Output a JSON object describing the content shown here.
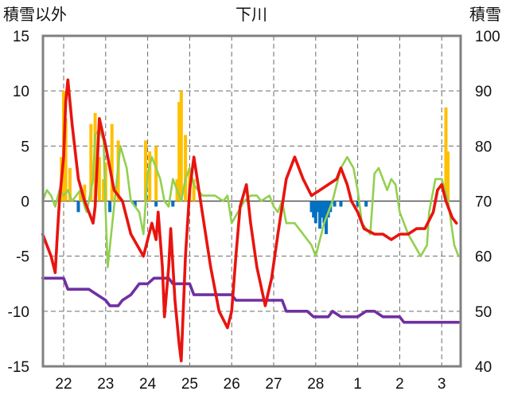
{
  "chart_data": {
    "type": "line",
    "title": "下川",
    "left_axis_label": "積雪以外",
    "right_axis_label": "積雪",
    "left_ylim": [
      -15,
      15
    ],
    "left_ticks": [
      "15",
      "10",
      "5",
      "0",
      "-5",
      "-10",
      "-15"
    ],
    "right_ylim": [
      40,
      100
    ],
    "right_ticks": [
      "100",
      "90",
      "80",
      "70",
      "60",
      "50",
      "40"
    ],
    "x_tick_labels": [
      "22",
      "23",
      "24",
      "25",
      "26",
      "27",
      "28",
      "1",
      "2",
      "3"
    ],
    "grid": true,
    "colors": {
      "red_series": "#e8140f",
      "green_series": "#92d050",
      "purple_series": "#7030a0",
      "orange_bars": "#ffc000",
      "blue_bars": "#0070c0",
      "frame": "#808080"
    },
    "series": [
      {
        "color": "#e8140f",
        "axis": "left",
        "points": [
          [
            21.5,
            -3
          ],
          [
            21.6,
            -4
          ],
          [
            21.7,
            -5
          ],
          [
            21.8,
            -6.5
          ],
          [
            21.85,
            -3
          ],
          [
            21.9,
            0
          ],
          [
            22.0,
            4
          ],
          [
            22.05,
            9
          ],
          [
            22.1,
            11
          ],
          [
            22.2,
            7
          ],
          [
            22.35,
            2
          ],
          [
            22.5,
            0
          ],
          [
            22.7,
            -2
          ],
          [
            22.75,
            -0.5
          ],
          [
            22.85,
            7.5
          ],
          [
            23.0,
            5
          ],
          [
            23.2,
            1
          ],
          [
            23.4,
            0
          ],
          [
            23.6,
            -3
          ],
          [
            23.9,
            -5
          ],
          [
            24.1,
            -2
          ],
          [
            24.2,
            -3.5
          ],
          [
            24.25,
            -1
          ],
          [
            24.35,
            -6
          ],
          [
            24.4,
            -10.5
          ],
          [
            24.5,
            -6
          ],
          [
            24.55,
            -2.5
          ],
          [
            24.65,
            -9
          ],
          [
            24.75,
            -13
          ],
          [
            24.8,
            -14.5
          ],
          [
            24.9,
            -5
          ],
          [
            25.0,
            1
          ],
          [
            25.1,
            4
          ],
          [
            25.3,
            -1
          ],
          [
            25.5,
            -6
          ],
          [
            25.7,
            -10
          ],
          [
            25.9,
            -11.5
          ],
          [
            26.0,
            -10
          ],
          [
            26.1,
            -5
          ],
          [
            26.2,
            -0.5
          ],
          [
            26.35,
            1.5
          ],
          [
            26.45,
            -2
          ],
          [
            26.6,
            -6
          ],
          [
            26.8,
            -9.5
          ],
          [
            26.95,
            -7
          ],
          [
            27.1,
            -3
          ],
          [
            27.3,
            2
          ],
          [
            27.5,
            4
          ],
          [
            27.7,
            2
          ],
          [
            27.9,
            0.5
          ],
          [
            28.1,
            1
          ],
          [
            28.3,
            1.5
          ],
          [
            28.5,
            2
          ],
          [
            28.6,
            3
          ],
          [
            28.75,
            1.5
          ],
          [
            28.85,
            0
          ],
          [
            29.0,
            -1
          ],
          [
            29.15,
            -2.5
          ],
          [
            29.4,
            -3
          ],
          [
            29.6,
            -3
          ],
          [
            29.8,
            -3.5
          ],
          [
            30.0,
            -3
          ],
          [
            30.2,
            -3
          ],
          [
            30.4,
            -2.5
          ],
          [
            30.6,
            -2.5
          ],
          [
            30.8,
            -1
          ],
          [
            30.9,
            1
          ],
          [
            31.0,
            1.5
          ],
          [
            31.1,
            0
          ],
          [
            31.25,
            -1.5
          ],
          [
            31.35,
            -2
          ]
        ]
      },
      {
        "color": "#92d050",
        "axis": "left",
        "points": [
          [
            21.5,
            0
          ],
          [
            21.6,
            1
          ],
          [
            21.7,
            0.5
          ],
          [
            21.8,
            -0.5
          ],
          [
            21.9,
            1
          ],
          [
            22.0,
            0.5
          ],
          [
            22.1,
            1
          ],
          [
            22.2,
            0
          ],
          [
            22.3,
            0.5
          ],
          [
            22.4,
            1
          ],
          [
            22.5,
            -0.5
          ],
          [
            22.55,
            -1
          ],
          [
            22.7,
            2
          ],
          [
            22.75,
            6
          ],
          [
            22.85,
            6.5
          ],
          [
            22.95,
            5.5
          ],
          [
            23.0,
            -1
          ],
          [
            23.05,
            -6
          ],
          [
            23.2,
            -0.5
          ],
          [
            23.35,
            5
          ],
          [
            23.5,
            3
          ],
          [
            23.6,
            0
          ],
          [
            23.8,
            -1
          ],
          [
            23.9,
            -3
          ],
          [
            24.0,
            2.5
          ],
          [
            24.1,
            4
          ],
          [
            24.2,
            3
          ],
          [
            24.3,
            2
          ],
          [
            24.4,
            0
          ],
          [
            24.5,
            -0.5
          ],
          [
            24.6,
            2
          ],
          [
            24.7,
            1
          ],
          [
            24.8,
            0
          ],
          [
            24.9,
            2
          ],
          [
            25.0,
            3
          ],
          [
            25.1,
            1.5
          ],
          [
            25.3,
            0.5
          ],
          [
            25.6,
            0.5
          ],
          [
            25.8,
            0
          ],
          [
            25.9,
            0.5
          ],
          [
            26.0,
            -2
          ],
          [
            26.15,
            -1
          ],
          [
            26.3,
            0
          ],
          [
            26.45,
            0.5
          ],
          [
            26.6,
            0.5
          ],
          [
            26.7,
            0
          ],
          [
            26.9,
            0.5
          ],
          [
            27.0,
            -0.5
          ],
          [
            27.1,
            -1
          ],
          [
            27.2,
            0
          ],
          [
            27.3,
            -2
          ],
          [
            27.5,
            -2
          ],
          [
            27.7,
            -3
          ],
          [
            27.9,
            -4
          ],
          [
            28.0,
            -5
          ],
          [
            28.2,
            -2
          ],
          [
            28.4,
            0
          ],
          [
            28.6,
            3
          ],
          [
            28.75,
            4
          ],
          [
            28.9,
            3
          ],
          [
            29.0,
            1
          ],
          [
            29.1,
            -2
          ],
          [
            29.3,
            -3
          ],
          [
            29.4,
            2.5
          ],
          [
            29.5,
            3
          ],
          [
            29.6,
            2
          ],
          [
            29.7,
            1
          ],
          [
            29.8,
            2
          ],
          [
            29.9,
            1.5
          ],
          [
            30.0,
            -1
          ],
          [
            30.2,
            -3
          ],
          [
            30.35,
            -4
          ],
          [
            30.5,
            -5
          ],
          [
            30.65,
            -4
          ],
          [
            30.7,
            -1
          ],
          [
            30.85,
            2
          ],
          [
            31.0,
            2
          ],
          [
            31.15,
            0
          ],
          [
            31.3,
            -4
          ],
          [
            31.4,
            -5
          ]
        ]
      },
      {
        "color": "#7030a0",
        "axis": "right",
        "points": [
          [
            21.5,
            56
          ],
          [
            21.8,
            56
          ],
          [
            22.0,
            56
          ],
          [
            22.1,
            54
          ],
          [
            22.6,
            54
          ],
          [
            22.8,
            53
          ],
          [
            23.0,
            52
          ],
          [
            23.1,
            51
          ],
          [
            23.3,
            51
          ],
          [
            23.4,
            52
          ],
          [
            23.6,
            53
          ],
          [
            23.7,
            54
          ],
          [
            23.8,
            55
          ],
          [
            24.0,
            55
          ],
          [
            24.15,
            56
          ],
          [
            24.3,
            56
          ],
          [
            24.5,
            56
          ],
          [
            24.6,
            55
          ],
          [
            25.0,
            55
          ],
          [
            25.1,
            53
          ],
          [
            26.0,
            53
          ],
          [
            26.1,
            52
          ],
          [
            26.7,
            52
          ],
          [
            26.8,
            52
          ],
          [
            27.2,
            52
          ],
          [
            27.3,
            50
          ],
          [
            27.8,
            50
          ],
          [
            27.95,
            49
          ],
          [
            28.3,
            49
          ],
          [
            28.4,
            50
          ],
          [
            28.6,
            49
          ],
          [
            29.0,
            49
          ],
          [
            29.2,
            50
          ],
          [
            29.4,
            50
          ],
          [
            29.6,
            49
          ],
          [
            30.0,
            49
          ],
          [
            30.1,
            48
          ],
          [
            31.4,
            48
          ]
        ]
      }
    ],
    "bars_orange": [
      [
        21.9,
        70
      ],
      [
        21.95,
        78
      ],
      [
        22.0,
        90
      ],
      [
        22.05,
        85
      ],
      [
        22.15,
        76
      ],
      [
        22.4,
        72
      ],
      [
        22.5,
        73
      ],
      [
        22.65,
        84
      ],
      [
        22.75,
        86
      ],
      [
        22.85,
        78
      ],
      [
        22.95,
        74
      ],
      [
        23.0,
        77
      ],
      [
        23.15,
        84
      ],
      [
        23.3,
        81
      ],
      [
        23.95,
        81
      ],
      [
        24.05,
        79
      ],
      [
        24.2,
        80
      ],
      [
        24.7,
        74
      ],
      [
        24.75,
        88
      ],
      [
        24.8,
        90
      ],
      [
        24.9,
        82
      ],
      [
        25.0,
        76
      ],
      [
        25.1,
        74
      ],
      [
        31.1,
        87
      ],
      [
        31.15,
        79
      ]
    ],
    "bars_blue": [
      [
        22.35,
        -1
      ],
      [
        23.1,
        -1
      ],
      [
        23.7,
        -0.5
      ],
      [
        24.2,
        -0.5
      ],
      [
        24.6,
        -0.5
      ],
      [
        27.9,
        -1
      ],
      [
        27.95,
        -1.5
      ],
      [
        28.0,
        -2
      ],
      [
        28.05,
        -1
      ],
      [
        28.1,
        -2.5
      ],
      [
        28.15,
        -1.5
      ],
      [
        28.2,
        -2
      ],
      [
        28.25,
        -3
      ],
      [
        28.3,
        -1.5
      ],
      [
        28.35,
        -1
      ],
      [
        28.45,
        -0.5
      ],
      [
        28.6,
        -0.5
      ],
      [
        29.0,
        -0.5
      ],
      [
        29.2,
        -0.5
      ]
    ]
  }
}
